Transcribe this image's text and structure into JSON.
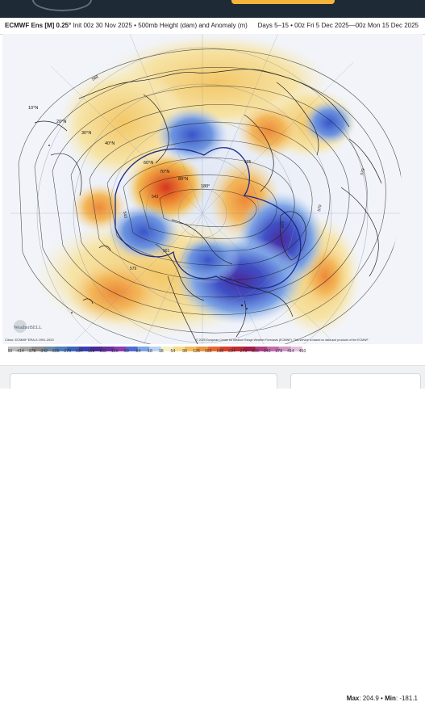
{
  "header": {
    "model": "ECMWF Ens [M] 0.25°",
    "init": "Init 00z 30 Nov 2025",
    "field": "500mb Height (dam) and Anomaly (m)",
    "period": "Days 5–15 • 00z Fri 5 Dec 2025—00z Mon 15 Dec 2025"
  },
  "map": {
    "lat_labels": [
      "10°N",
      "20°N",
      "30°N",
      "40°N",
      "60°N",
      "70°N",
      "80°N"
    ],
    "lon_label": "180°",
    "contour_labels": [
      "588",
      "579",
      "561",
      "543",
      "534",
      "525",
      "570",
      "579",
      "543"
    ],
    "climo_note": "Climo: ECMWF ERA-5 1991-2020",
    "copyright": "© 2025 European Centre for Medium Range Weather Forecasts (ECMWF). This service is based on data and products of the ECMWF",
    "watermark": "WeatherBELL"
  },
  "colorbar": {
    "labels": [
      "-450",
      "-414",
      "-378",
      "-342",
      "-306",
      "-270",
      "-234",
      "-198",
      "-162",
      "-126",
      "-90",
      "-54",
      "-18",
      "18",
      "54",
      "90",
      "126",
      "162",
      "198",
      "234",
      "270",
      "306",
      "342",
      "378",
      "414",
      "450"
    ],
    "colors": [
      "#bdbdbd",
      "#a8a8a8",
      "#8c8c8c",
      "#6a8aa6",
      "#4e7fbf",
      "#3b64c4",
      "#3b3fb3",
      "#4a2a9e",
      "#6a2fa6",
      "#8a3db5",
      "#4f6bd6",
      "#7ba6e8",
      "#b9d3f2",
      "#f6f1c6",
      "#f7dc8c",
      "#f5bd5c",
      "#ef9440",
      "#e8682e",
      "#d9402c",
      "#c22a35",
      "#a81d48",
      "#b43d86",
      "#c46ab0",
      "#d596c8",
      "#e4bfdd"
    ],
    "max_label": "Max",
    "max_value": "204.9",
    "min_label": "Min",
    "min_value": "-181.1"
  }
}
